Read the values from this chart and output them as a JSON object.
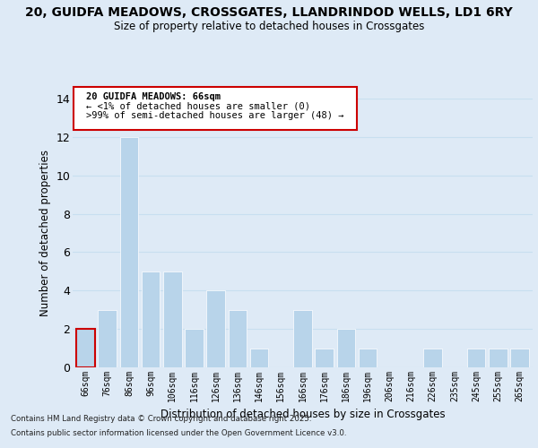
{
  "title": "20, GUIDFA MEADOWS, CROSSGATES, LLANDRINDOD WELLS, LD1 6RY",
  "subtitle": "Size of property relative to detached houses in Crossgates",
  "xlabel": "Distribution of detached houses by size in Crossgates",
  "ylabel": "Number of detached properties",
  "bins": [
    "66sqm",
    "76sqm",
    "86sqm",
    "96sqm",
    "106sqm",
    "116sqm",
    "126sqm",
    "136sqm",
    "146sqm",
    "156sqm",
    "166sqm",
    "176sqm",
    "186sqm",
    "196sqm",
    "206sqm",
    "216sqm",
    "226sqm",
    "235sqm",
    "245sqm",
    "255sqm",
    "265sqm"
  ],
  "values": [
    2,
    3,
    12,
    5,
    5,
    2,
    4,
    3,
    1,
    0,
    3,
    1,
    2,
    1,
    0,
    0,
    1,
    0,
    1,
    1,
    1
  ],
  "highlight_bin_index": 0,
  "bar_color": "#b8d4ea",
  "highlight_color": "#cc0000",
  "bar_edge_color": "#ffffff",
  "grid_color": "#c8dff0",
  "background_color": "#deeaf6",
  "annotation_box_color": "#ffffff",
  "annotation_border_color": "#cc0000",
  "annotation_text_line1": "20 GUIDFA MEADOWS: 66sqm",
  "annotation_text_line2": "← <1% of detached houses are smaller (0)",
  "annotation_text_line3": ">99% of semi-detached houses are larger (48) →",
  "ylim": [
    0,
    14
  ],
  "yticks": [
    0,
    2,
    4,
    6,
    8,
    10,
    12,
    14
  ],
  "footnote1": "Contains HM Land Registry data © Crown copyright and database right 2025.",
  "footnote2": "Contains public sector information licensed under the Open Government Licence v3.0."
}
